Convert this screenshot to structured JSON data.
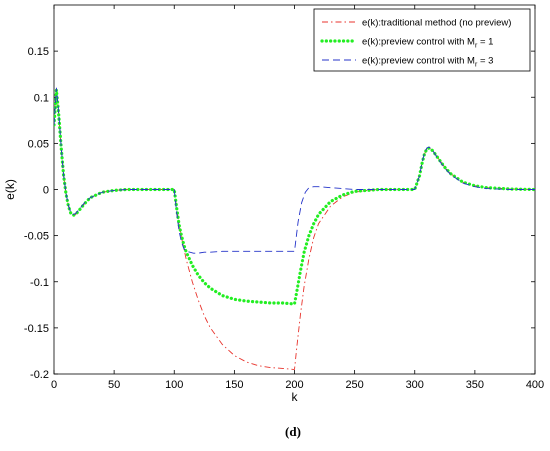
{
  "chart_data": {
    "type": "line",
    "xlabel": "k",
    "ylabel": "e(k)",
    "panel_label": "(d)",
    "xlim": [
      0,
      400
    ],
    "ylim": [
      -0.2,
      0.2
    ],
    "xticks": [
      0,
      50,
      100,
      150,
      200,
      250,
      300,
      350,
      400
    ],
    "yticks": [
      -0.2,
      -0.15,
      -0.1,
      -0.05,
      0,
      0.05,
      0.1,
      0.15
    ],
    "ytick_labels": [
      "-0.2",
      "-0.15",
      "-0.1",
      "-0.05",
      "0",
      "0.05",
      "0.1",
      "0.15"
    ],
    "legend_position": "top-right",
    "grid": false,
    "series": [
      {
        "name": "e(k):traditional method (no preview)",
        "legend_main": "e(k):traditional method (no preview)",
        "legend_sub": "",
        "legend_tail": "",
        "color": "#e8332c",
        "style": "dashdot",
        "x": [
          0,
          2,
          4,
          6,
          8,
          10,
          12,
          14,
          16,
          18,
          20,
          25,
          30,
          40,
          50,
          60,
          70,
          80,
          90,
          100,
          102,
          104,
          106,
          108,
          110,
          115,
          120,
          125,
          130,
          140,
          150,
          160,
          170,
          180,
          190,
          199,
          200,
          202,
          205,
          208,
          212,
          216,
          220,
          230,
          240,
          250,
          260,
          270,
          280,
          290,
          300,
          304,
          306,
          308,
          310,
          312,
          315,
          320,
          325,
          330,
          340,
          350,
          360,
          380,
          400
        ],
        "y": [
          0.07,
          0.108,
          0.08,
          0.045,
          0.015,
          -0.005,
          -0.018,
          -0.026,
          -0.028,
          -0.027,
          -0.024,
          -0.016,
          -0.009,
          -0.003,
          -0.001,
          0,
          0,
          0,
          0,
          0,
          -0.02,
          -0.038,
          -0.052,
          -0.064,
          -0.076,
          -0.1,
          -0.12,
          -0.137,
          -0.15,
          -0.168,
          -0.18,
          -0.187,
          -0.191,
          -0.193,
          -0.194,
          -0.195,
          -0.195,
          -0.17,
          -0.135,
          -0.105,
          -0.075,
          -0.052,
          -0.037,
          -0.018,
          -0.008,
          -0.003,
          -0.001,
          0,
          0,
          0,
          0,
          0.015,
          0.028,
          0.038,
          0.044,
          0.045,
          0.042,
          0.033,
          0.024,
          0.017,
          0.008,
          0.004,
          0.002,
          0.0005,
          0
        ]
      },
      {
        "name": "e(k):preview control with Mr = 1",
        "legend_main": "e(k):preview control with M",
        "legend_sub": "r",
        "legend_tail": " = 1",
        "color": "#22ee22",
        "style": "dotted",
        "x": [
          0,
          2,
          4,
          6,
          8,
          10,
          12,
          14,
          16,
          18,
          20,
          25,
          30,
          40,
          50,
          60,
          70,
          80,
          90,
          100,
          102,
          104,
          106,
          108,
          110,
          115,
          120,
          125,
          130,
          140,
          150,
          160,
          170,
          180,
          190,
          199,
          200,
          202,
          205,
          208,
          212,
          216,
          220,
          230,
          240,
          250,
          260,
          270,
          280,
          290,
          300,
          304,
          306,
          308,
          310,
          312,
          315,
          320,
          325,
          330,
          340,
          350,
          360,
          380,
          400
        ],
        "y": [
          0.07,
          0.108,
          0.08,
          0.045,
          0.015,
          -0.005,
          -0.018,
          -0.026,
          -0.028,
          -0.027,
          -0.024,
          -0.016,
          -0.009,
          -0.003,
          -0.001,
          0,
          0,
          0,
          0,
          0,
          -0.02,
          -0.038,
          -0.05,
          -0.06,
          -0.068,
          -0.082,
          -0.093,
          -0.101,
          -0.107,
          -0.115,
          -0.119,
          -0.121,
          -0.122,
          -0.123,
          -0.123,
          -0.124,
          -0.124,
          -0.11,
          -0.088,
          -0.068,
          -0.05,
          -0.037,
          -0.027,
          -0.013,
          -0.006,
          -0.002,
          -0.001,
          0,
          0,
          0,
          0,
          0.015,
          0.028,
          0.038,
          0.044,
          0.045,
          0.042,
          0.033,
          0.024,
          0.017,
          0.008,
          0.004,
          0.002,
          0.0005,
          0
        ]
      },
      {
        "name": "e(k):preview control with Mr = 3",
        "legend_main": "e(k):preview control with M",
        "legend_sub": "r",
        "legend_tail": " = 3",
        "color": "#2433c9",
        "style": "dashed",
        "x": [
          0,
          2,
          4,
          6,
          8,
          10,
          12,
          14,
          16,
          18,
          20,
          25,
          30,
          40,
          50,
          60,
          70,
          80,
          90,
          100,
          102,
          104,
          106,
          108,
          110,
          113,
          116,
          120,
          125,
          130,
          140,
          150,
          160,
          170,
          180,
          190,
          199,
          200,
          203,
          206,
          209,
          212,
          216,
          220,
          230,
          240,
          250,
          260,
          270,
          280,
          290,
          300,
          304,
          306,
          308,
          310,
          312,
          315,
          320,
          325,
          330,
          340,
          350,
          360,
          380,
          400
        ],
        "y": [
          0.07,
          0.11,
          0.082,
          0.046,
          0.016,
          -0.004,
          -0.017,
          -0.025,
          -0.027,
          -0.026,
          -0.023,
          -0.015,
          -0.009,
          -0.003,
          -0.001,
          0,
          0,
          0,
          0,
          0,
          -0.025,
          -0.045,
          -0.057,
          -0.064,
          -0.067,
          -0.068,
          -0.069,
          -0.069,
          -0.068,
          -0.068,
          -0.067,
          -0.067,
          -0.067,
          -0.067,
          -0.067,
          -0.067,
          -0.067,
          -0.067,
          -0.035,
          -0.014,
          -0.003,
          0.002,
          0.003,
          0.003,
          0.002,
          0.001,
          0,
          0,
          0,
          0,
          0,
          0,
          0.015,
          0.029,
          0.039,
          0.045,
          0.046,
          0.042,
          0.032,
          0.023,
          0.016,
          0.007,
          0.003,
          0.001,
          0,
          0
        ]
      }
    ]
  }
}
